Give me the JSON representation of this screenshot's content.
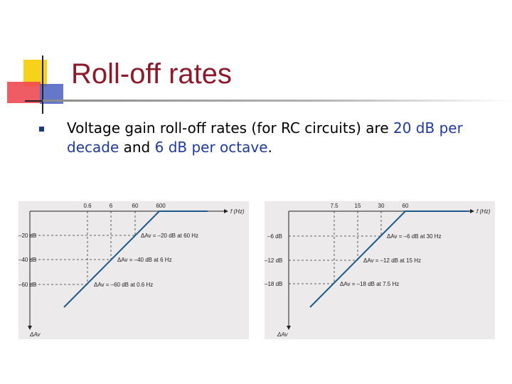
{
  "slide": {
    "title": "Roll-off rates",
    "bullet": {
      "part1": "Voltage gain roll-off rates (for RC circuits) are ",
      "rate1": "20 dB per decade",
      "part2": " and ",
      "rate2": "6 dB per octave",
      "part3": "."
    }
  },
  "figures": {
    "left": {
      "freq_axis_label": "f (Hz)",
      "gain_axis_label": "ΔAv",
      "freq_ticks": [
        "0.6",
        "6",
        "60",
        "600"
      ],
      "gain_ticks": [
        "–20 dB",
        "–40 dB",
        "–60 dB"
      ],
      "annotations": [
        "ΔAv = –20 dB at 60 Hz",
        "ΔAv = –40 dB at 6 Hz",
        "ΔAv = –60 dB at 0.6 Hz"
      ]
    },
    "right": {
      "freq_axis_label": "f (Hz)",
      "gain_axis_label": "ΔAv",
      "freq_ticks": [
        "7.5",
        "15",
        "30",
        "60"
      ],
      "gain_ticks": [
        "–6 dB",
        "–12 dB",
        "–18 dB"
      ],
      "annotations": [
        "ΔAv = –6 dB at 30 Hz",
        "ΔAv = –12 dB at 15 Hz",
        "ΔAv = –18 dB at 7.5 Hz"
      ]
    }
  },
  "colors": {
    "title": "#8b1a2a",
    "curve": "#1f5a8a",
    "bullet": "#1f3a78",
    "highlight": "#1f3a9a",
    "logo_yellow": "#f7d21a",
    "logo_red": "#e8303a",
    "logo_blue": "#3a4fb0"
  }
}
